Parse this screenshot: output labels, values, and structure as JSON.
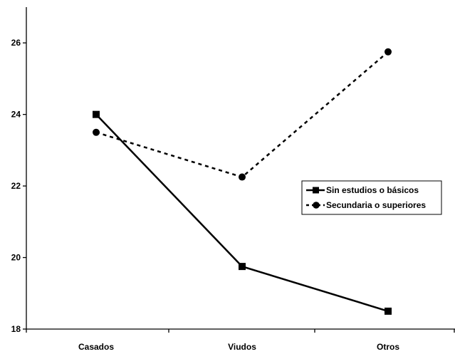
{
  "chart_data": {
    "type": "line",
    "categories": [
      "Casados",
      "Viudos",
      "Otros"
    ],
    "series": [
      {
        "name": "Sin estudios o básicos",
        "values": [
          24.0,
          19.75,
          18.5
        ],
        "style": "solid",
        "marker": "square"
      },
      {
        "name": "Secundaria o superiores",
        "values": [
          23.5,
          22.25,
          25.75
        ],
        "style": "dashed",
        "marker": "circle"
      }
    ],
    "ylim": [
      18,
      27
    ],
    "yticks": [
      18,
      20,
      22,
      24,
      26
    ],
    "ytick_labels": [
      "18",
      "20",
      "22",
      "24",
      "26"
    ],
    "title": "",
    "xlabel": "",
    "ylabel": "",
    "grid": false,
    "legend_position": "right",
    "colors": {
      "line": "#000000",
      "background": "#ffffff"
    }
  }
}
